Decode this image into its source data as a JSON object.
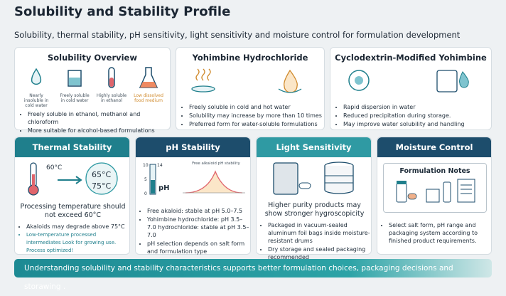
{
  "header": {
    "title": "Solubility and Stability Profile",
    "subtitle": "Solubility, thermal stability, pH sensitivity, light sensitivity and moisture control for formulation development"
  },
  "top_panels": [
    {
      "title": "Solubility Overview",
      "icons": [
        "Nearly insoluble in cold water",
        "Freely soluble in cold water",
        "Highly soluble in ethanol",
        "Low dissolved food medium"
      ],
      "bullets": [
        "Freely soluble in ethanol, methanol and chloroform",
        "More suitable for alcohol-based formulations"
      ]
    },
    {
      "title": "Yohimbine Hydrochloride",
      "bullets": [
        "Freely soluble in cold and hot water",
        "Solubility may increase by more than 10 times",
        "Preferred form for water-soluble formulations"
      ]
    },
    {
      "title": "Cyclodextrin-Modified Yohimbine",
      "bullets": [
        "Rapid dispersion in water",
        "Reduced precipitation during storage.",
        "May improve water solubility and handling"
      ]
    }
  ],
  "bottom_panels": [
    {
      "title": "Thermal Stability",
      "labels": [
        "60°C",
        "65°C",
        "75°C"
      ],
      "statement": "Processing temperature should not exceed 60°C",
      "bullets": [
        "Akaloids may degrade above 75°C",
        "Low-temperature processed intermediates Look for growing use. Process optimized!"
      ]
    },
    {
      "title": "pH Stability",
      "chart_labels": [
        "10",
        "5",
        "0",
        "14",
        "pH",
        "Free alkaloid pH stability"
      ],
      "bullets": [
        "Free akaloid: stable at pH 5.0–7.5",
        "Yohimbine hydrochloride: pH 3.5–7.0 hydrochloride: stable at pH 3.5–7.0",
        "pH selection depends on salt form and formulation type"
      ]
    },
    {
      "title": "Light Sensitivity",
      "statement": "Higher purity products may show stronger hygroscopicity",
      "bullets": [
        "Packaged in vacuum-sealed aluminum foil bags inside moisture-resistant drums",
        "Dry storage and sealed packaging recommended"
      ]
    },
    {
      "title": "Moisture Control",
      "notes_title": "Formulation Notes",
      "bullets": [
        "Select salt form, pH range and packaging system according to finished product requirements."
      ]
    }
  ],
  "footer": "Understanding solubility and stability characteristics supports better formulation choices, packaging decisions and storawing ."
}
